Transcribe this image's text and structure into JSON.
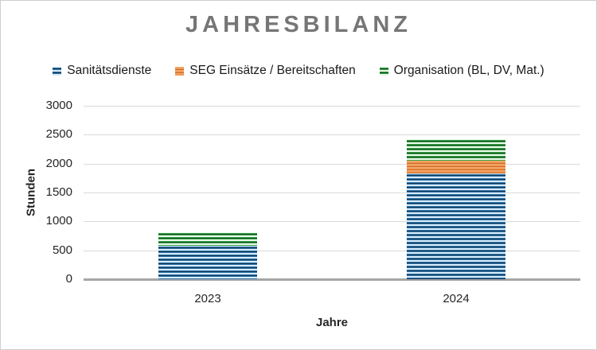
{
  "chart_data": {
    "type": "bar",
    "stacked": true,
    "title": "JAHRESBILANZ",
    "xlabel": "Jahre",
    "ylabel": "Stunden",
    "categories": [
      "2023",
      "2024"
    ],
    "series": [
      {
        "name": "Sanitätsdienste",
        "pattern": "blue",
        "color": "#2e75b6",
        "values": [
          575,
          1825
        ]
      },
      {
        "name": "SEG Einsätze / Bereitschaften",
        "pattern": "orange",
        "color": "#e97132",
        "values": [
          0,
          220
        ]
      },
      {
        "name": "Organisation (BL, DV, Mat.)",
        "pattern": "green",
        "color": "#2e9e44",
        "values": [
          240,
          375
        ]
      }
    ],
    "ylim": [
      0,
      3000
    ],
    "ytick_step": 500,
    "grid": true,
    "legend_position": "top"
  },
  "colors": {
    "title": "#767676",
    "gridline": "#d9d9d9",
    "axis_line": "#a6a6a6",
    "text": "#262626",
    "frame_border": "#cfcfcf"
  }
}
